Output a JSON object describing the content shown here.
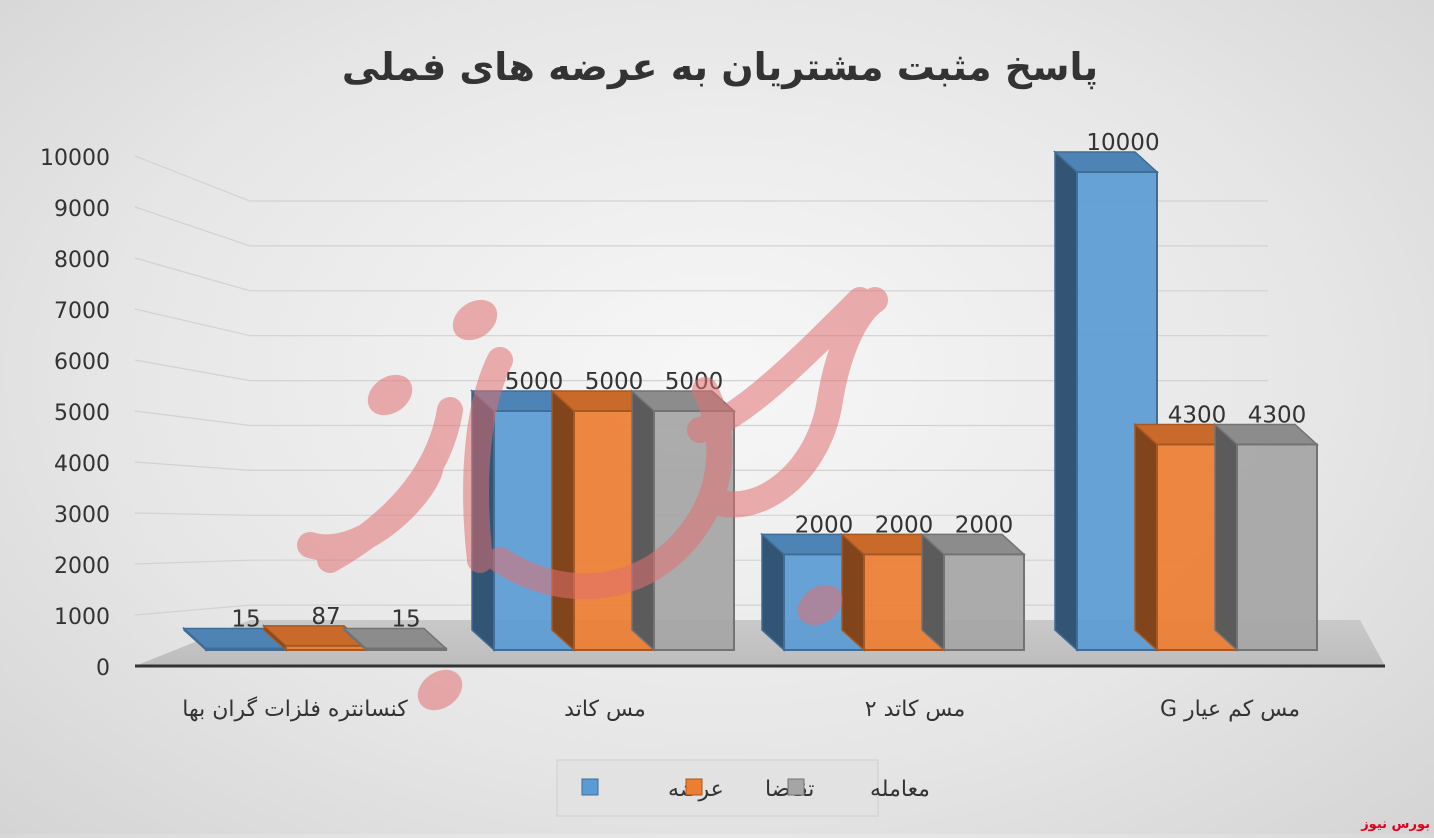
{
  "chart_data": {
    "type": "bar",
    "title": "پاسخ مثبت مشتریان به عرضه های فملی",
    "categories": [
      "کنسانتره فلزات گران بها",
      "مس کاتد",
      "مس کاتد ۲",
      "مس کم عیار G"
    ],
    "series": [
      {
        "name": "عرضه",
        "values": [
          15,
          5000,
          2000,
          10000
        ],
        "color": "#5b9bd5"
      },
      {
        "name": "تقاضا",
        "values": [
          87,
          5000,
          2000,
          4300
        ],
        "color": "#ed7d31"
      },
      {
        "name": "معامله",
        "values": [
          15,
          5000,
          2000,
          4300
        ],
        "color": "#a5a5a5"
      }
    ],
    "ylim": [
      0,
      10000
    ],
    "yticks": [
      0,
      1000,
      2000,
      3000,
      4000,
      5000,
      6000,
      7000,
      8000,
      9000,
      10000
    ],
    "grid": true,
    "legend": "bottom",
    "xlabel": "",
    "ylabel": ""
  },
  "watermark_text": "بورس نیوز",
  "source_credit": "بورس نیوز"
}
